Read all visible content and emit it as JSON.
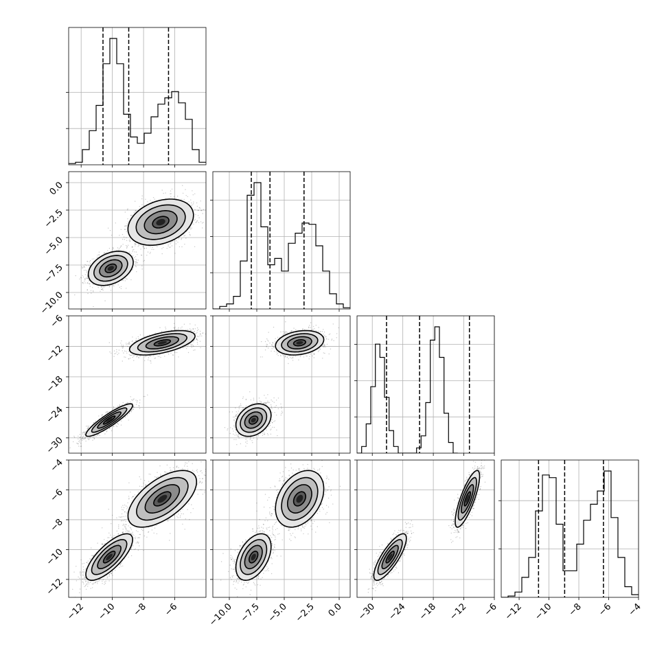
{
  "chart_data": {
    "type": "corner",
    "parameters": [
      {
        "range": [
          -12.8,
          -4.0
        ],
        "ticks": [
          -12,
          -10,
          -8,
          -6
        ],
        "tick_labels": [
          "−12",
          "−10",
          "−8",
          "−6"
        ],
        "quantiles": [
          -10.6,
          -8.95,
          -6.4
        ],
        "hist_y_gridlines": [
          0.3,
          0.6
        ],
        "histogram": {
          "edges_start": -12.8,
          "bin_width": 0.44,
          "counts": [
            0.01,
            0.02,
            0.12,
            0.27,
            0.47,
            0.8,
            1.0,
            0.8,
            0.4,
            0.22,
            0.17,
            0.25,
            0.38,
            0.48,
            0.53,
            0.58,
            0.49,
            0.36,
            0.12,
            0.02
          ]
        },
        "modes": [
          {
            "weight": 0.5,
            "mean": -10.2,
            "sd": 0.75
          },
          {
            "weight": 0.5,
            "mean": -6.9,
            "sd": 1.05
          }
        ]
      },
      {
        "range": [
          -11.5,
          1.0
        ],
        "ticks": [
          -10.0,
          -7.5,
          -5.0,
          -2.5,
          0.0
        ],
        "tick_labels": [
          "−10.0",
          "−7.5",
          "−5.0",
          "−2.5",
          "0.0"
        ],
        "quantiles": [
          -8.0,
          -6.3,
          -3.2
        ],
        "hist_y_gridlines": [
          0.3,
          0.6,
          0.9
        ],
        "histogram": {
          "edges_start": -11.5,
          "bin_width": 0.625,
          "counts": [
            0.0,
            0.02,
            0.04,
            0.1,
            0.38,
            0.9,
            1.0,
            0.65,
            0.35,
            0.4,
            0.3,
            0.52,
            0.6,
            0.68,
            0.67,
            0.5,
            0.3,
            0.12,
            0.04,
            0.01
          ]
        },
        "modes": [
          {
            "weight": 0.5,
            "mean": -7.8,
            "sd": 0.8
          },
          {
            "weight": 0.5,
            "mean": -3.7,
            "sd": 1.1
          }
        ]
      },
      {
        "range": [
          -33.0,
          -6.0
        ],
        "ticks": [
          -30,
          -24,
          -18,
          -12,
          -6
        ],
        "tick_labels": [
          "−30",
          "−24",
          "−18",
          "−12",
          "−6"
        ],
        "quantiles": [
          -27.2,
          -20.7,
          -10.9
        ],
        "hist_y_gridlines": [
          0.3,
          0.6,
          0.9
        ],
        "histogram": {
          "edges_start": -33.0,
          "bin_width": 0.9,
          "counts": [
            0.0,
            0.05,
            0.22,
            0.5,
            0.82,
            0.72,
            0.42,
            0.17,
            0.05,
            0.0,
            0.0,
            0.0,
            0.0,
            0.04,
            0.13,
            0.38,
            0.85,
            0.95,
            0.72,
            0.3,
            0.08,
            0.0
          ]
        },
        "modes": [
          {
            "weight": 0.5,
            "mean": -26.5,
            "sd": 1.6
          },
          {
            "weight": 0.5,
            "mean": -11.3,
            "sd": 1.2
          }
        ]
      },
      {
        "range": [
          -13.2,
          -4.0
        ],
        "ticks": [
          -12,
          -10,
          -8,
          -6,
          -4
        ],
        "tick_labels": [
          "−12",
          "−10",
          "−8",
          "−6",
          "−4"
        ],
        "quantiles": [
          -10.7,
          -8.95,
          -6.35
        ],
        "hist_y_gridlines": [
          0.4,
          0.8
        ],
        "histogram": {
          "edges_start": -13.2,
          "bin_width": 0.46,
          "counts": [
            0.0,
            0.01,
            0.04,
            0.15,
            0.3,
            0.65,
            0.92,
            0.9,
            0.55,
            0.2,
            0.2,
            0.4,
            0.58,
            0.7,
            0.8,
            0.95,
            0.6,
            0.3,
            0.08,
            0.02
          ]
        },
        "modes": [
          {
            "weight": 0.5,
            "mean": -10.5,
            "sd": 0.75
          },
          {
            "weight": 0.5,
            "mean": -6.6,
            "sd": 0.95
          }
        ]
      }
    ],
    "scatter_panels": [
      {
        "x_param": 0,
        "y_param": 1,
        "clusters": [
          {
            "mean": [
              -10.1,
              -7.8
            ],
            "sd": [
              0.72,
              0.78
            ],
            "corr": 0.35
          },
          {
            "mean": [
              -6.9,
              -3.6
            ],
            "sd": [
              1.05,
              1.05
            ],
            "corr": 0.3
          }
        ]
      },
      {
        "x_param": 0,
        "y_param": 2,
        "clusters": [
          {
            "mean": [
              -10.2,
              -26.5
            ],
            "sd": [
              0.75,
              1.6
            ],
            "corr": 0.9
          },
          {
            "mean": [
              -6.8,
              -11.3
            ],
            "sd": [
              1.05,
              1.2
            ],
            "corr": 0.55
          }
        ]
      },
      {
        "x_param": 1,
        "y_param": 2,
        "clusters": [
          {
            "mean": [
              -7.8,
              -26.5
            ],
            "sd": [
              0.8,
              1.6
            ],
            "corr": 0.3
          },
          {
            "mean": [
              -3.6,
              -11.3
            ],
            "sd": [
              1.1,
              1.2
            ],
            "corr": 0.25
          }
        ]
      },
      {
        "x_param": 0,
        "y_param": 3,
        "clusters": [
          {
            "mean": [
              -10.2,
              -10.5
            ],
            "sd": [
              0.75,
              0.78
            ],
            "corr": 0.75
          },
          {
            "mean": [
              -6.8,
              -6.6
            ],
            "sd": [
              1.1,
              0.95
            ],
            "corr": 0.6
          }
        ]
      },
      {
        "x_param": 1,
        "y_param": 3,
        "clusters": [
          {
            "mean": [
              -7.8,
              -10.5
            ],
            "sd": [
              0.8,
              0.78
            ],
            "corr": 0.45
          },
          {
            "mean": [
              -3.6,
              -6.6
            ],
            "sd": [
              1.1,
              0.95
            ],
            "corr": 0.35
          }
        ]
      },
      {
        "x_param": 2,
        "y_param": 3,
        "clusters": [
          {
            "mean": [
              -26.5,
              -10.5
            ],
            "sd": [
              1.6,
              0.78
            ],
            "corr": 0.8
          },
          {
            "mean": [
              -11.3,
              -6.6
            ],
            "sd": [
              1.2,
              0.95
            ],
            "corr": 0.8
          }
        ]
      }
    ],
    "contour_levels_sigma": [
      0.5,
      1.0,
      1.5,
      2.0
    ],
    "grid": true,
    "colors": {
      "points": "#000000",
      "lines": "#000000",
      "grid": "#b0b0b0"
    }
  }
}
